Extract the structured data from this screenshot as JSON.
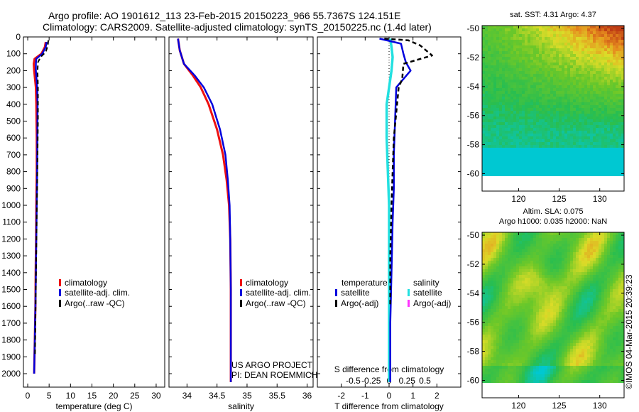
{
  "header": {
    "line1": "Argo profile: AO 1901612_113 23-Feb-2015 20150223_966 55.7367S 124.151E",
    "line2": "Climatology: CARS2009. Satellite-adjusted climatology: synTS_20150225.nc (1.4d later)"
  },
  "project": {
    "line1": "US ARGO PROJECT",
    "line2": "PI: DEAN ROEMMICH"
  },
  "footer_stamp": "©IMOS 04-Mar-2015 20:39:23",
  "colors": {
    "climatology": "#ee1111",
    "satellite": "#0000dd",
    "argo": "#000000",
    "salinity_sat": "#22e0e0",
    "salinity_argo": "#ff33ff"
  },
  "chart_data": [
    {
      "id": "temperature",
      "type": "line",
      "xlabel": "temperature (deg C)",
      "ylabel": "",
      "xlim": [
        -1,
        32
      ],
      "ylim": [
        2080,
        0
      ],
      "xticks": [
        0,
        5,
        10,
        15,
        20,
        25,
        30
      ],
      "yticks": [
        0,
        100,
        200,
        300,
        400,
        500,
        600,
        700,
        800,
        900,
        1000,
        1100,
        1200,
        1300,
        1400,
        1500,
        1600,
        1700,
        1800,
        1900,
        2000
      ],
      "legend": [
        "climatology",
        "satellite-adj. clim.",
        "Argo(..raw -QC)"
      ],
      "series": [
        {
          "name": "climatology",
          "color": "#ee1111",
          "x": [
            4.2,
            4.0,
            3.2,
            1.6,
            1.4,
            1.5,
            1.9,
            2.0,
            2.1,
            2.1,
            2.0,
            1.95,
            1.85,
            1.8,
            1.65,
            1.5
          ],
          "y": [
            30,
            60,
            100,
            130,
            160,
            200,
            300,
            400,
            600,
            800,
            1000,
            1200,
            1400,
            1600,
            1800,
            2000
          ]
        },
        {
          "name": "satellite-adj. clim.",
          "color": "#0000dd",
          "x": [
            4.4,
            4.2,
            3.4,
            2.0,
            1.9,
            1.9,
            2.2,
            2.3,
            2.25,
            2.2,
            2.1,
            2.0,
            1.9,
            1.8,
            1.65,
            1.5
          ],
          "y": [
            30,
            60,
            100,
            130,
            160,
            200,
            300,
            400,
            600,
            800,
            1000,
            1200,
            1400,
            1600,
            1800,
            2000
          ]
        },
        {
          "name": "Argo(..raw -QC)",
          "color": "#000000",
          "x": [
            4.8,
            4.7,
            4.2,
            3.0,
            2.4,
            2.3,
            2.4,
            2.4,
            2.3,
            2.2,
            2.1,
            2.0,
            1.9,
            1.8,
            1.7
          ],
          "y": [
            20,
            50,
            90,
            120,
            150,
            200,
            300,
            500,
            700,
            900,
            1100,
            1300,
            1500,
            1700,
            1900
          ]
        }
      ]
    },
    {
      "id": "salinity",
      "type": "line",
      "xlabel": "salinity",
      "ylabel": "",
      "xlim": [
        33.7,
        36.1
      ],
      "ylim": [
        2080,
        0
      ],
      "xticks": [
        34,
        34.5,
        35,
        35.5,
        36
      ],
      "legend": [
        "climatology",
        "satellite-adj. clim.",
        "Argo(..raw -QC)"
      ],
      "series": [
        {
          "name": "climatology",
          "color": "#ee1111",
          "x": [
            33.85,
            33.88,
            33.95,
            34.1,
            34.23,
            34.36,
            34.5,
            34.6,
            34.66,
            34.7,
            34.72,
            34.73,
            34.73,
            34.73
          ],
          "y": [
            10,
            80,
            160,
            230,
            300,
            400,
            550,
            700,
            850,
            1000,
            1200,
            1500,
            1800,
            2050
          ]
        },
        {
          "name": "satellite-adj. clim.",
          "color": "#0000dd",
          "x": [
            33.85,
            33.88,
            33.95,
            34.13,
            34.28,
            34.42,
            34.55,
            34.64,
            34.68,
            34.71,
            34.72,
            34.73,
            34.73,
            34.73
          ],
          "y": [
            10,
            80,
            160,
            230,
            300,
            400,
            550,
            700,
            850,
            1000,
            1200,
            1500,
            1800,
            2050
          ]
        },
        {
          "name": "Argo(..raw -QC)",
          "color": "#000000",
          "x": [],
          "y": []
        }
      ]
    },
    {
      "id": "difference",
      "type": "line",
      "xlabel": "T difference from climatology",
      "xlabel_top": "S difference from climatology",
      "ylabel": "",
      "xlim": [
        -3,
        3
      ],
      "ylim": [
        2080,
        0
      ],
      "xticks": [
        -2,
        -1,
        0,
        1,
        2
      ],
      "sticks": [
        -0.5,
        -0.25,
        0,
        0.25,
        0.5
      ],
      "sticklabels": [
        "-0.5",
        "-0.25",
        "0",
        "0.25",
        "0.5"
      ],
      "legend_temperature": {
        "title": "temperature",
        "items": [
          "satellite",
          "Argo(-adj)"
        ]
      },
      "legend_salinity": {
        "title": "salinity",
        "items": [
          "satellite",
          "Argo(-adj)"
        ]
      },
      "series": [
        {
          "name": "temperature satellite",
          "color": "#0000dd",
          "x": [
            -0.4,
            0.5,
            0.6,
            0.7,
            0.9,
            0.3,
            0.25,
            0.2,
            0.2,
            0.15,
            0.1,
            0.05,
            0.05
          ],
          "y": [
            10,
            40,
            100,
            150,
            200,
            300,
            500,
            700,
            900,
            1100,
            1400,
            1700,
            2050
          ]
        },
        {
          "name": "temperature Argo(-adj)",
          "color": "#000000",
          "x": [
            -0.2,
            0.8,
            1.3,
            1.8,
            0.6,
            0.55,
            0.4,
            0.3,
            0.2,
            0.15,
            0.1,
            0.05,
            0.05
          ],
          "y": [
            10,
            20,
            50,
            110,
            160,
            250,
            300,
            450,
            600,
            800,
            1000,
            1300,
            1600
          ]
        },
        {
          "name": "salinity satellite",
          "color": "#22e0e0",
          "x": [
            0.05,
            0.1,
            0.15,
            0.1,
            0.0,
            -0.1,
            -0.1,
            -0.05,
            0.0,
            0.0,
            0.0,
            0.0,
            0.0
          ],
          "y": [
            10,
            60,
            120,
            200,
            300,
            400,
            600,
            800,
            1000,
            1200,
            1500,
            1800,
            2050
          ]
        }
      ]
    },
    {
      "id": "sst_map",
      "type": "heatmap",
      "title": "sat. SST: 4.31  Argo: 4.37",
      "xlim": [
        115.5,
        133
      ],
      "ylim": [
        -61.2,
        -49.8
      ],
      "xticks": [
        120,
        125,
        130
      ],
      "yticks": [
        -50,
        -52,
        -54,
        -56,
        -58,
        -60
      ],
      "data_extent_y": [
        -60,
        -49.8
      ]
    },
    {
      "id": "sla_map",
      "type": "heatmap",
      "title_line1": "Altim. SLA: 0.075",
      "title_line2": "Argo h1000: 0.035 h2000: NaN",
      "xlim": [
        115.5,
        133
      ],
      "ylim": [
        -61.2,
        -49.8
      ],
      "xticks": [
        120,
        125,
        130
      ],
      "yticks": [
        -50,
        -52,
        -54,
        -56,
        -58,
        -60
      ],
      "data_extent_y": [
        -60,
        -49.8
      ]
    }
  ]
}
